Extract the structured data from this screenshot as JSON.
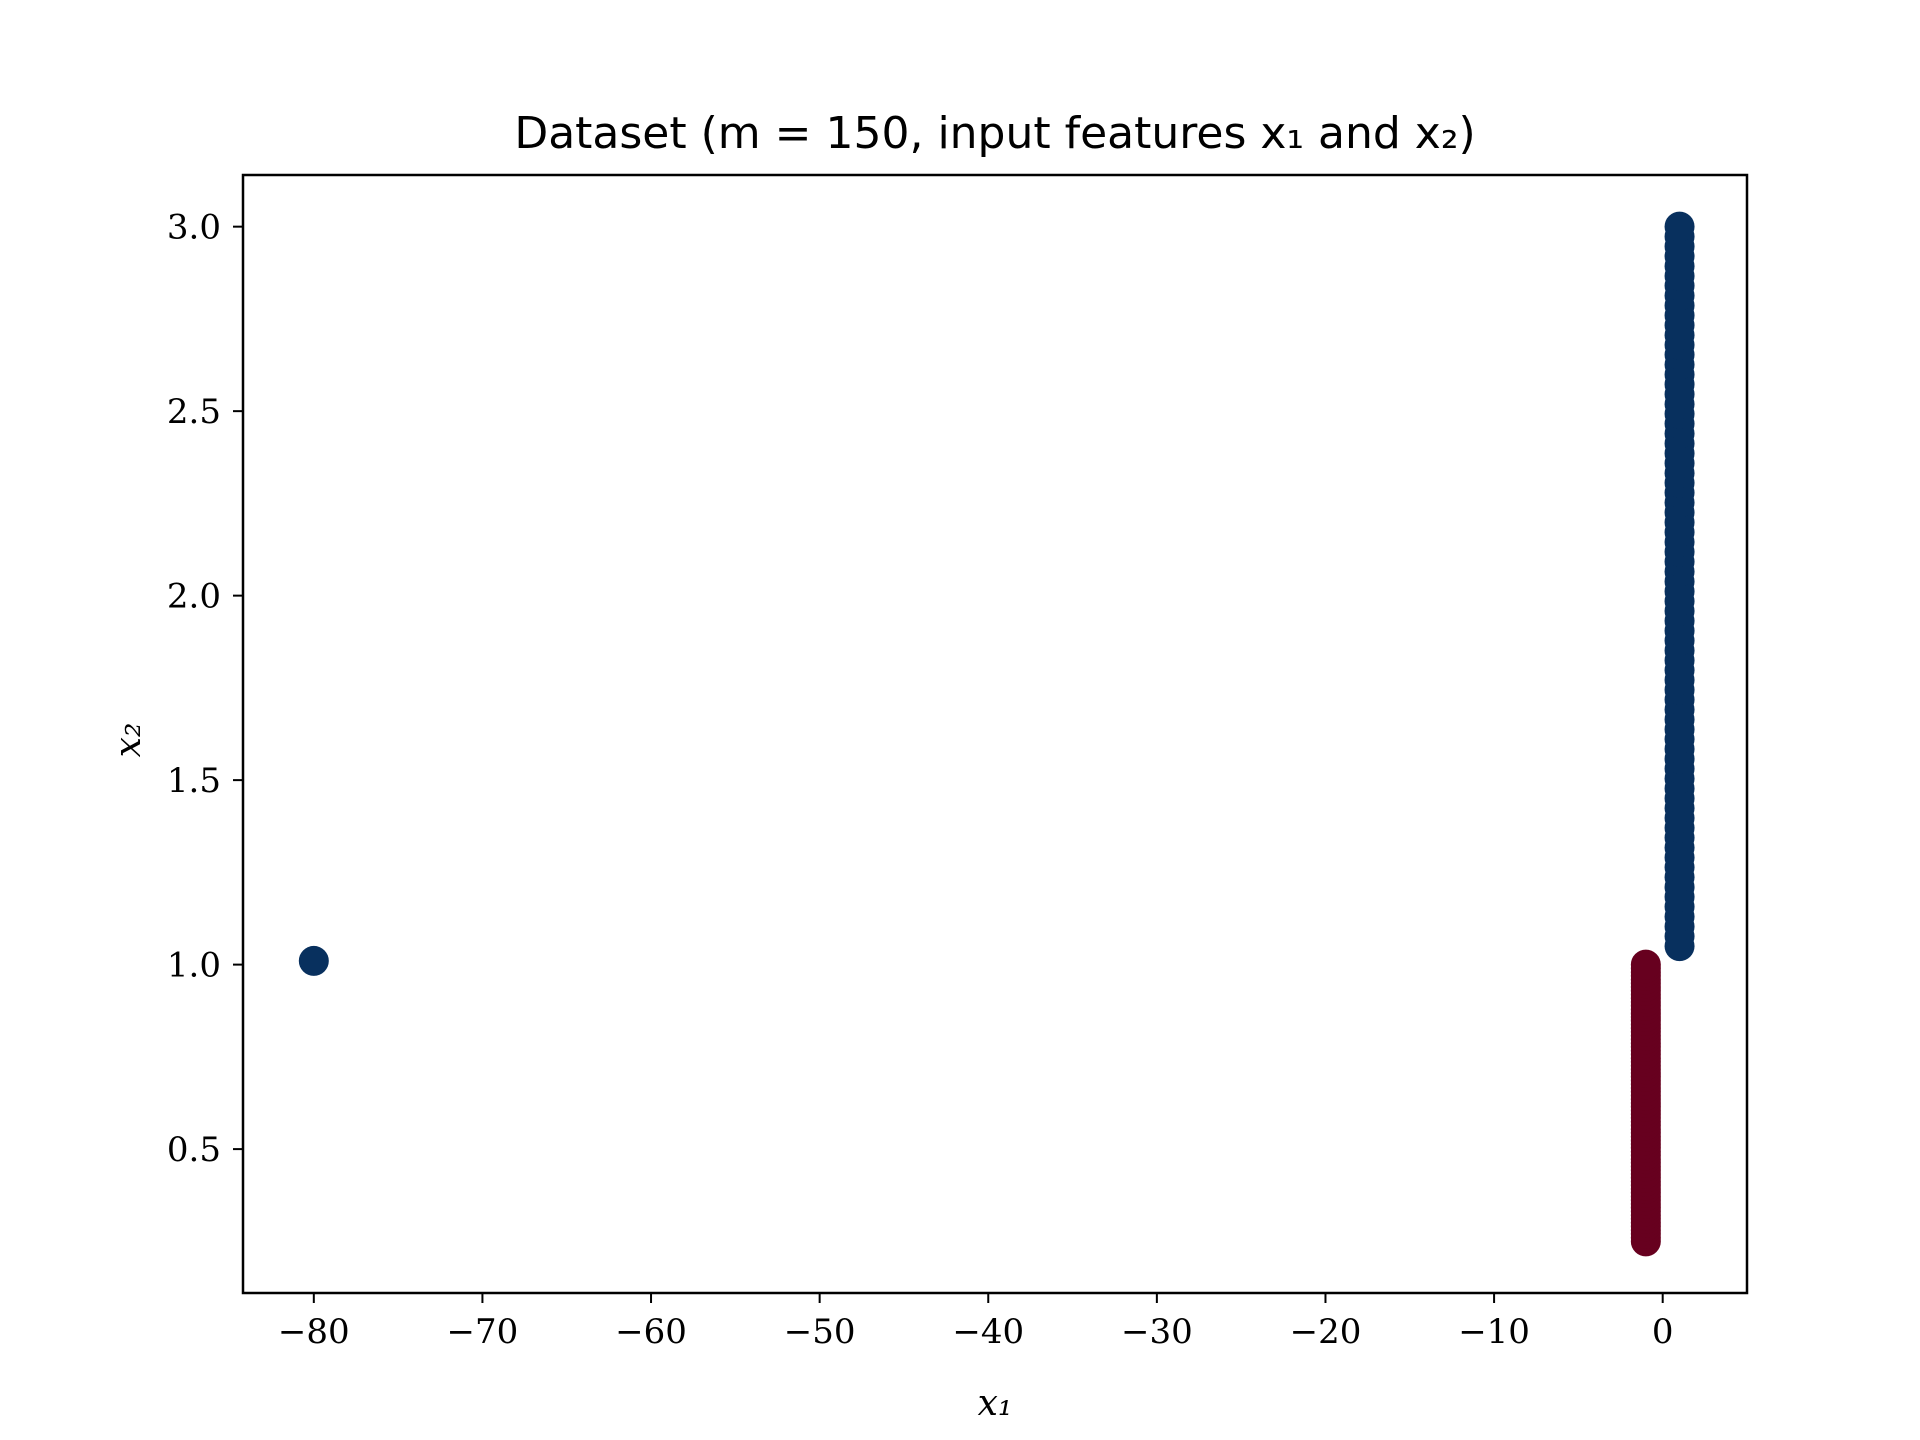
{
  "chart_data": {
    "type": "scatter",
    "title": "Dataset (m = 150, input features x₁ and x₂)",
    "xlabel": "x₁",
    "ylabel": "x₂",
    "xlim": [
      -84.2,
      5.0
    ],
    "ylim": [
      0.11,
      3.14
    ],
    "xticks": [
      -80,
      -70,
      -60,
      -50,
      -40,
      -30,
      -20,
      -10,
      0
    ],
    "xtick_labels": [
      "−80",
      "−70",
      "−60",
      "−50",
      "−40",
      "−30",
      "−20",
      "−10",
      "0"
    ],
    "yticks": [
      0.5,
      1.0,
      1.5,
      2.0,
      2.5,
      3.0
    ],
    "ytick_labels": [
      "0.5",
      "1.0",
      "1.5",
      "2.0",
      "2.5",
      "3.0"
    ],
    "grid": false,
    "legend": "none",
    "series": [
      {
        "color": "#08305e",
        "x_const": 1.0,
        "y_start": 1.05,
        "y_end": 3.0,
        "count": 74,
        "extra_points": [
          {
            "x": -80.0,
            "y": 1.01
          }
        ]
      },
      {
        "color": "#67001f",
        "x_const": -1.0,
        "y_start": 0.25,
        "y_end": 1.0,
        "count": 75,
        "extra_points": []
      }
    ]
  }
}
